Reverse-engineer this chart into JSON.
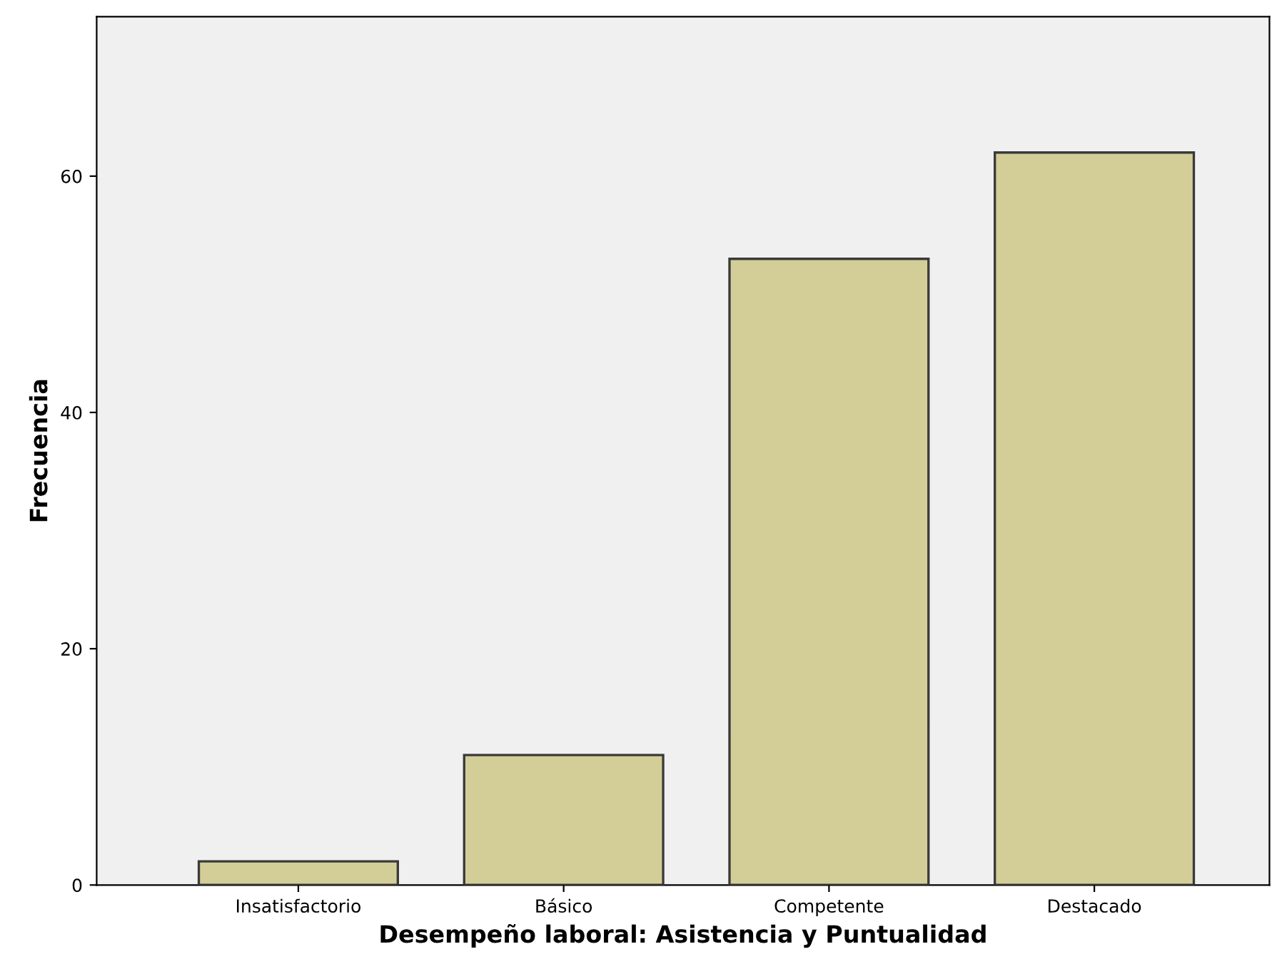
{
  "chart_data": {
    "type": "bar",
    "xlabel": "Desempeño laboral: Asistencia y Puntualidad",
    "ylabel": "Frecuencia",
    "categories": [
      "Insatisfactorio",
      "Básico",
      "Competente",
      "Destacado"
    ],
    "values": [
      2,
      11,
      53,
      62
    ],
    "color": "#d3ce97",
    "ylim": [
      0,
      73.5
    ],
    "yticks": [
      0,
      20,
      40,
      60
    ],
    "grid": false
  }
}
